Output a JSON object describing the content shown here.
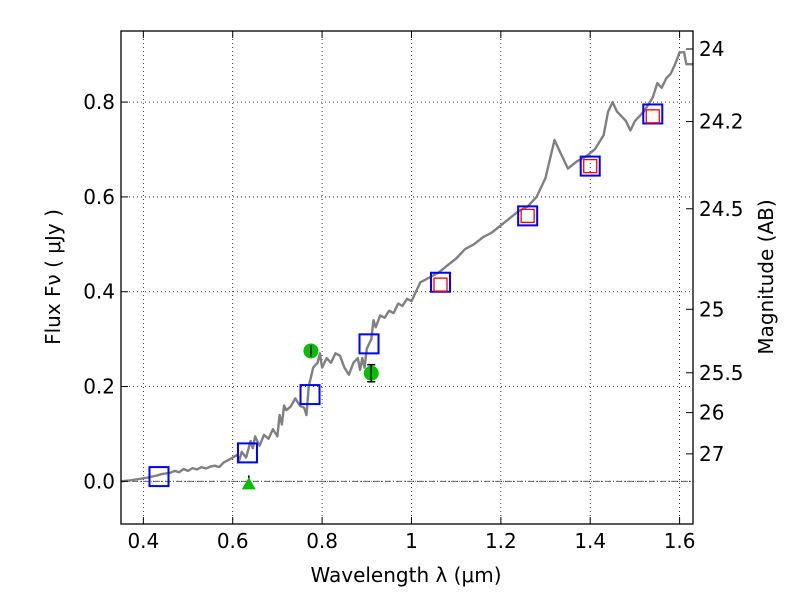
{
  "chart_data": {
    "type": "line",
    "xlabel": "Wavelength  λ (μm)",
    "ylabel": "Flux  Fν  ( μJy )",
    "y2label": "Magnitude (AB)",
    "xlim": [
      0.35,
      1.63
    ],
    "ylim": [
      -0.09,
      0.95
    ],
    "grid": true,
    "x_ticks": [
      0.4,
      0.6,
      0.8,
      1.0,
      1.2,
      1.4,
      1.6
    ],
    "x_tick_labels": [
      "0.4",
      "0.6",
      "0.8",
      "1",
      "1.2",
      "1.4",
      "1.6"
    ],
    "y_ticks": [
      0.0,
      0.2,
      0.4,
      0.6,
      0.8
    ],
    "y_tick_labels": [
      "0.0",
      "0.2",
      "0.4",
      "0.6",
      "0.8"
    ],
    "y2_ticks": [
      {
        "flux": 0.912,
        "label": "24"
      },
      {
        "flux": 0.759,
        "label": "24.2"
      },
      {
        "flux": 0.575,
        "label": "24.5"
      },
      {
        "flux": 0.363,
        "label": "25"
      },
      {
        "flux": 0.229,
        "label": "25.5"
      },
      {
        "flux": 0.145,
        "label": "26"
      },
      {
        "flux": 0.058,
        "label": "27"
      }
    ],
    "zero_line": 0.0,
    "colors": {
      "spectrum": "#808080",
      "model_box": "#0000ff",
      "observed_box": "#ff0000",
      "green_point": "#00c000",
      "error_bar": "#000000",
      "grid": "#000000"
    },
    "series": [
      {
        "type": "line",
        "points": [
          [
            0.35,
            0.0
          ],
          [
            0.37,
            0.002
          ],
          [
            0.39,
            0.005
          ],
          [
            0.41,
            0.008
          ],
          [
            0.43,
            0.012
          ],
          [
            0.44,
            0.015
          ],
          [
            0.46,
            0.018
          ],
          [
            0.47,
            0.022
          ],
          [
            0.48,
            0.019
          ],
          [
            0.49,
            0.026
          ],
          [
            0.5,
            0.022
          ],
          [
            0.51,
            0.028
          ],
          [
            0.52,
            0.025
          ],
          [
            0.53,
            0.03
          ],
          [
            0.54,
            0.027
          ],
          [
            0.55,
            0.031
          ],
          [
            0.56,
            0.033
          ],
          [
            0.57,
            0.03
          ],
          [
            0.58,
            0.04
          ],
          [
            0.59,
            0.045
          ],
          [
            0.6,
            0.05
          ],
          [
            0.61,
            0.056
          ],
          [
            0.615,
            0.045
          ],
          [
            0.62,
            0.062
          ],
          [
            0.63,
            0.05
          ],
          [
            0.64,
            0.085
          ],
          [
            0.645,
            0.07
          ],
          [
            0.65,
            0.095
          ],
          [
            0.66,
            0.075
          ],
          [
            0.67,
            0.098
          ],
          [
            0.68,
            0.09
          ],
          [
            0.69,
            0.11
          ],
          [
            0.7,
            0.095
          ],
          [
            0.705,
            0.14
          ],
          [
            0.71,
            0.12
          ],
          [
            0.715,
            0.16
          ],
          [
            0.72,
            0.15
          ],
          [
            0.73,
            0.158
          ],
          [
            0.74,
            0.175
          ],
          [
            0.75,
            0.16
          ],
          [
            0.76,
            0.155
          ],
          [
            0.765,
            0.14
          ],
          [
            0.77,
            0.2
          ],
          [
            0.78,
            0.24
          ],
          [
            0.79,
            0.25
          ],
          [
            0.795,
            0.27
          ],
          [
            0.8,
            0.24
          ],
          [
            0.81,
            0.26
          ],
          [
            0.82,
            0.25
          ],
          [
            0.83,
            0.27
          ],
          [
            0.84,
            0.265
          ],
          [
            0.85,
            0.24
          ],
          [
            0.86,
            0.225
          ],
          [
            0.87,
            0.25
          ],
          [
            0.88,
            0.26
          ],
          [
            0.885,
            0.235
          ],
          [
            0.89,
            0.26
          ],
          [
            0.895,
            0.24
          ],
          [
            0.9,
            0.28
          ],
          [
            0.91,
            0.3
          ],
          [
            0.915,
            0.34
          ],
          [
            0.92,
            0.325
          ],
          [
            0.93,
            0.35
          ],
          [
            0.94,
            0.345
          ],
          [
            0.95,
            0.36
          ],
          [
            0.96,
            0.355
          ],
          [
            0.97,
            0.375
          ],
          [
            0.98,
            0.37
          ],
          [
            0.99,
            0.385
          ],
          [
            1.0,
            0.38
          ],
          [
            1.01,
            0.4
          ],
          [
            1.02,
            0.42
          ],
          [
            1.03,
            0.425
          ],
          [
            1.04,
            0.43
          ],
          [
            1.06,
            0.44
          ],
          [
            1.08,
            0.455
          ],
          [
            1.1,
            0.47
          ],
          [
            1.12,
            0.49
          ],
          [
            1.14,
            0.5
          ],
          [
            1.16,
            0.515
          ],
          [
            1.18,
            0.525
          ],
          [
            1.2,
            0.54
          ],
          [
            1.22,
            0.555
          ],
          [
            1.24,
            0.57
          ],
          [
            1.26,
            0.58
          ],
          [
            1.28,
            0.6
          ],
          [
            1.3,
            0.64
          ],
          [
            1.31,
            0.68
          ],
          [
            1.32,
            0.72
          ],
          [
            1.33,
            0.7
          ],
          [
            1.35,
            0.66
          ],
          [
            1.37,
            0.675
          ],
          [
            1.39,
            0.685
          ],
          [
            1.41,
            0.7
          ],
          [
            1.43,
            0.73
          ],
          [
            1.44,
            0.78
          ],
          [
            1.45,
            0.8
          ],
          [
            1.46,
            0.78
          ],
          [
            1.48,
            0.76
          ],
          [
            1.49,
            0.74
          ],
          [
            1.5,
            0.76
          ],
          [
            1.52,
            0.78
          ],
          [
            1.54,
            0.81
          ],
          [
            1.55,
            0.84
          ],
          [
            1.56,
            0.83
          ],
          [
            1.57,
            0.85
          ],
          [
            1.58,
            0.86
          ],
          [
            1.59,
            0.88
          ],
          [
            1.6,
            0.905
          ],
          [
            1.61,
            0.905
          ],
          [
            1.615,
            0.88
          ],
          [
            1.63,
            0.88
          ]
        ]
      },
      {
        "type": "scatter",
        "marker": "open-square-blue",
        "points": [
          [
            0.435,
            0.01
          ],
          [
            0.633,
            0.06
          ],
          [
            0.773,
            0.183
          ],
          [
            0.905,
            0.29
          ],
          [
            1.065,
            0.42
          ],
          [
            1.26,
            0.56
          ],
          [
            1.4,
            0.665
          ],
          [
            1.54,
            0.775
          ]
        ]
      },
      {
        "type": "scatter",
        "marker": "open-square-red",
        "points": [
          [
            1.065,
            0.415
          ],
          [
            1.26,
            0.56
          ],
          [
            1.4,
            0.665
          ],
          [
            1.54,
            0.77
          ]
        ]
      },
      {
        "type": "scatter",
        "marker": "green-circle-errorbar",
        "points": [
          [
            0.775,
            0.275,
            0.012
          ],
          [
            0.91,
            0.228,
            0.018
          ]
        ]
      },
      {
        "type": "scatter",
        "marker": "green-triangle",
        "points": [
          [
            0.636,
            0.0
          ]
        ]
      }
    ]
  }
}
